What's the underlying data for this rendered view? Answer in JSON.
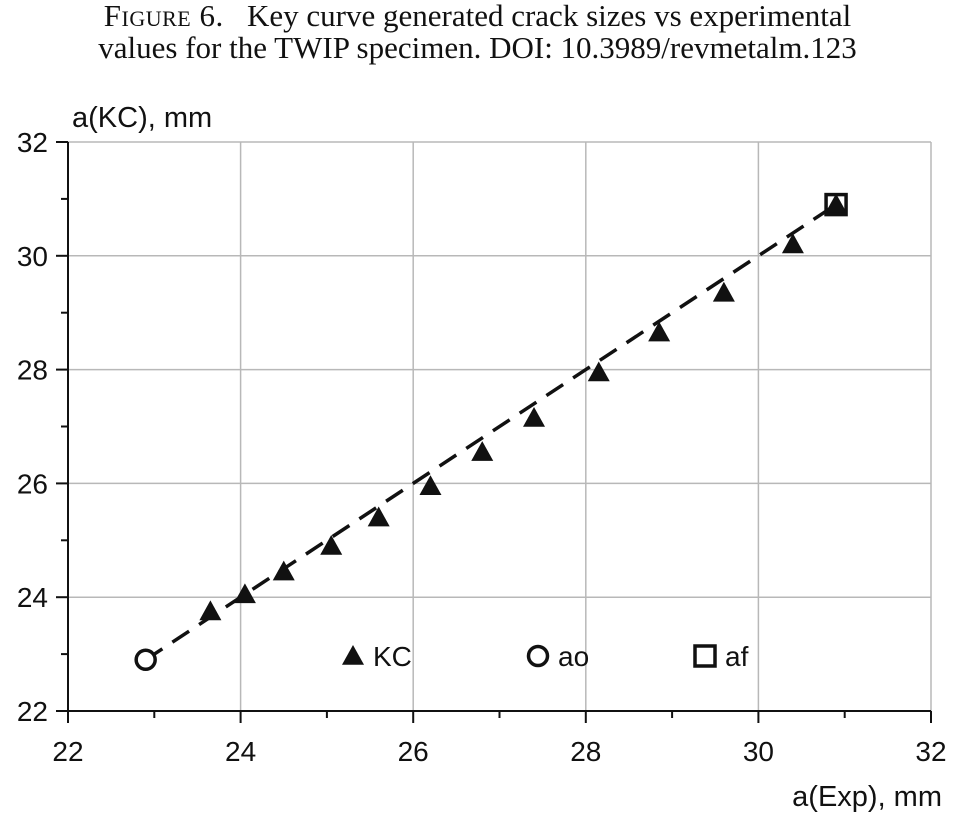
{
  "caption": {
    "figure_label": "Figure 6.",
    "line1": "Key curve generated crack sizes vs experimental",
    "line2": "values for the TWIP specimen. DOI: 10.3989/revmetalm.123"
  },
  "chart_data": {
    "type": "scatter",
    "xlabel": "a(Exp), mm",
    "ylabel": "a(KC), mm",
    "xlim": [
      22,
      32
    ],
    "ylim": [
      22,
      32
    ],
    "x_ticks": [
      22,
      24,
      26,
      28,
      30,
      32
    ],
    "y_ticks": [
      22,
      24,
      26,
      28,
      30,
      32
    ],
    "grid": true,
    "legend_position": "bottom-center",
    "series": [
      {
        "name": "KC",
        "marker": "triangle",
        "x": [
          23.65,
          24.05,
          24.5,
          25.05,
          25.6,
          26.2,
          26.8,
          27.4,
          28.15,
          28.85,
          29.6,
          30.4,
          30.9
        ],
        "y": [
          23.75,
          24.05,
          24.45,
          24.9,
          25.4,
          25.95,
          26.55,
          27.15,
          27.95,
          28.65,
          29.35,
          30.2,
          30.9
        ]
      },
      {
        "name": "ao",
        "marker": "circle",
        "x": [
          22.9
        ],
        "y": [
          22.9
        ]
      },
      {
        "name": "af",
        "marker": "square",
        "x": [
          30.9
        ],
        "y": [
          30.9
        ]
      }
    ],
    "reference_line": {
      "style": "dashed",
      "x": [
        22.9,
        30.9
      ],
      "y": [
        22.9,
        30.9
      ]
    }
  }
}
